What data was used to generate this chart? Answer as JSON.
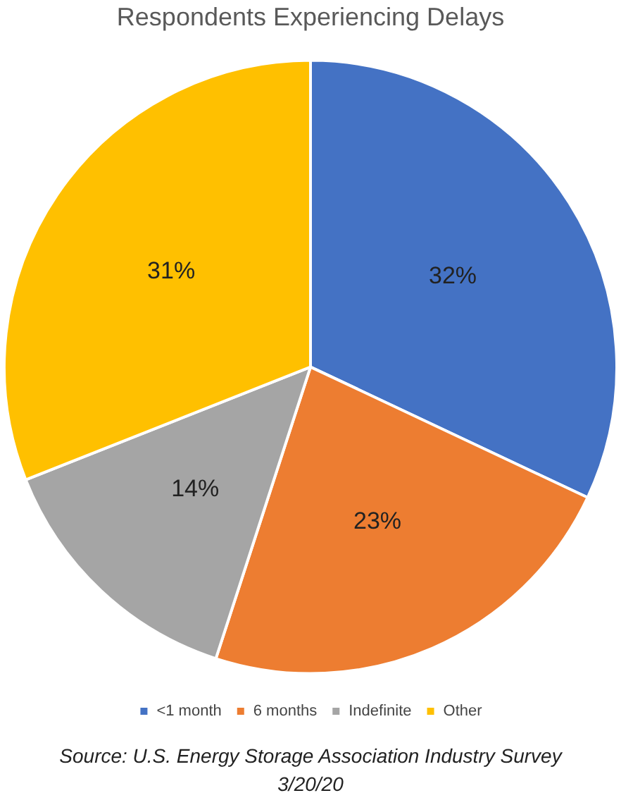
{
  "chart_data": {
    "type": "pie",
    "title": "Respondents Experiencing Delays",
    "categories": [
      "<1 month",
      "6 months",
      "Indefinite",
      "Other"
    ],
    "values": [
      32,
      23,
      14,
      31
    ],
    "colors": [
      "#4472c4",
      "#ed7d31",
      "#a5a5a5",
      "#ffc000"
    ],
    "value_labels": [
      "32%",
      "23%",
      "14%",
      "31%"
    ],
    "legend": "bottom",
    "annotations": [
      "Source: U.S. Energy Storage Association Industry Survey 3/20/20"
    ]
  }
}
